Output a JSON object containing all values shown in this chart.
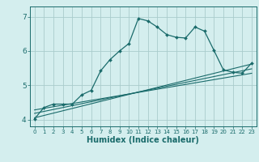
{
  "title": "",
  "xlabel": "Humidex (Indice chaleur)",
  "ylabel": "",
  "xlim": [
    -0.5,
    23.5
  ],
  "ylim": [
    3.8,
    7.3
  ],
  "yticks": [
    4,
    5,
    6,
    7
  ],
  "xticks": [
    0,
    1,
    2,
    3,
    4,
    5,
    6,
    7,
    8,
    9,
    10,
    11,
    12,
    13,
    14,
    15,
    16,
    17,
    18,
    19,
    20,
    21,
    22,
    23
  ],
  "bg_color": "#d4eeee",
  "grid_color": "#aacccc",
  "line_color": "#1a6b6b",
  "line1_x": [
    0,
    1,
    2,
    3,
    4,
    5,
    6,
    7,
    8,
    9,
    10,
    11,
    12,
    13,
    14,
    15,
    16,
    17,
    18,
    19,
    20,
    21,
    22,
    23
  ],
  "line1_y": [
    4.02,
    4.35,
    4.45,
    4.45,
    4.45,
    4.72,
    4.85,
    5.42,
    5.75,
    6.0,
    6.22,
    6.95,
    6.88,
    6.7,
    6.48,
    6.4,
    6.38,
    6.7,
    6.58,
    6.02,
    5.45,
    5.38,
    5.35,
    5.65
  ],
  "line2_x": [
    0,
    23
  ],
  "line2_y": [
    4.05,
    5.62
  ],
  "line3_x": [
    0,
    23
  ],
  "line3_y": [
    4.18,
    5.48
  ],
  "line4_x": [
    0,
    23
  ],
  "line4_y": [
    4.28,
    5.35
  ],
  "tick_fontsize_x": 5.0,
  "tick_fontsize_y": 6.5,
  "xlabel_fontsize": 7.0
}
